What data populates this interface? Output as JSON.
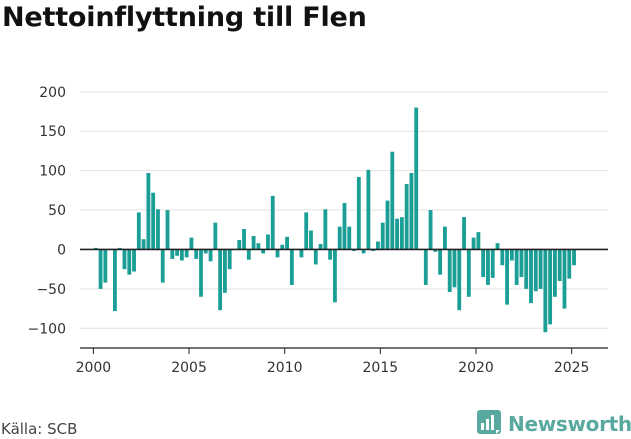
{
  "header": {
    "title": "Nettoinflyttning till Flen"
  },
  "footer": {
    "source": "Källa: SCB",
    "brand": "Newsworthy"
  },
  "colors": {
    "bar": "#1a9e96",
    "zero_line": "#222222",
    "axis": "#222222",
    "brand": "#5aa9a0"
  },
  "icons": {
    "brand_logo": "chart-logo-icon"
  },
  "chart_data": {
    "type": "bar",
    "title": "Nettoinflyttning till Flen",
    "xlabel": "",
    "ylabel": "",
    "frequency": "quarterly",
    "start_period": "2000 Q1",
    "x_ticks": [
      "2000",
      "2005",
      "2010",
      "2015",
      "2020",
      "2025"
    ],
    "y_ticks": [
      "200",
      "150",
      "100",
      "50",
      "0",
      "−50",
      "−100"
    ],
    "y_tick_values": [
      200,
      150,
      100,
      50,
      0,
      -50,
      -100
    ],
    "xlim": [
      1999.3,
      2026.9
    ],
    "ylim": [
      -125,
      215
    ],
    "grid": "horizontal",
    "values": [
      2,
      -50,
      -42,
      0,
      -78,
      2,
      -25,
      -32,
      -28,
      47,
      13,
      97,
      72,
      51,
      -42,
      50,
      -12,
      -8,
      -14,
      -10,
      15,
      -12,
      -60,
      -5,
      -15,
      34,
      -77,
      -55,
      -25,
      0,
      12,
      26,
      -13,
      17,
      8,
      -5,
      19,
      68,
      -10,
      6,
      16,
      -45,
      0,
      -10,
      47,
      24,
      -19,
      7,
      51,
      -13,
      -67,
      29,
      59,
      29,
      -2,
      92,
      -5,
      101,
      -2,
      10,
      34,
      62,
      124,
      39,
      41,
      83,
      97,
      180,
      0,
      -45,
      50,
      -3,
      -32,
      29,
      -54,
      -48,
      -77,
      41,
      -60,
      15,
      22,
      -35,
      -45,
      -36,
      8,
      -20,
      -70,
      -14,
      -45,
      -35,
      -50,
      -68,
      -53,
      -50,
      -105,
      -95,
      -60,
      -40,
      -75,
      -37,
      -20
    ]
  }
}
